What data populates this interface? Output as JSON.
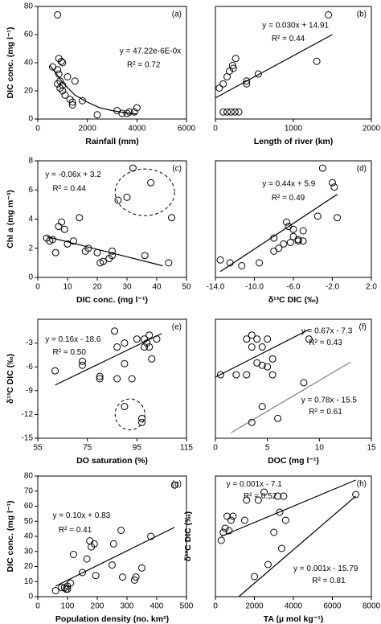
{
  "chart_data": [
    {
      "type": "scatter",
      "label": "(a)",
      "xlabel": "Rainfall (mm)",
      "ylabel": "DIC conc. (mg l⁻¹)",
      "x": [
        800,
        600,
        850,
        950,
        1000,
        800,
        850,
        900,
        800,
        1000,
        900,
        1000,
        1100,
        1200,
        1300,
        1400,
        1400,
        1500,
        1800,
        2400,
        3200,
        3400,
        3600,
        3700,
        3900,
        4000
      ],
      "y": [
        74,
        37,
        43,
        41,
        40,
        35,
        32,
        27,
        25,
        24,
        22,
        20,
        17,
        30,
        14,
        12,
        10,
        27,
        13,
        3,
        6,
        4,
        4,
        5,
        5,
        8
      ],
      "xlim": [
        0,
        6000
      ],
      "xticks": [
        0,
        2000,
        4000,
        6000
      ],
      "ylim": [
        0,
        80
      ],
      "yticks": [
        0,
        20,
        40,
        60,
        80
      ],
      "annotations": [
        "y = 47.22e-6E-0x",
        "R² = 0.72"
      ],
      "trendlines": [
        {
          "color": "#000000",
          "x": [
            500,
            1000,
            1500,
            2000,
            2500,
            3000,
            3500,
            4000
          ],
          "y": [
            38,
            26,
            17,
            12,
            8,
            6,
            4.5,
            3.5
          ]
        }
      ],
      "marker_color": "#000000"
    },
    {
      "type": "scatter",
      "label": "(b)",
      "xlabel": "Length of river (km)",
      "x": [
        50,
        100,
        150,
        180,
        220,
        260,
        230,
        100,
        150,
        200,
        250,
        300,
        400,
        400,
        550,
        1300,
        1450
      ],
      "y": [
        22,
        25,
        30,
        34,
        38,
        43,
        36,
        5,
        5,
        5,
        5,
        5,
        27,
        25,
        32,
        41,
        74
      ],
      "xlim": [
        0,
        2000
      ],
      "xticks": [
        0,
        1000,
        2000
      ],
      "ylim": [
        0,
        80
      ],
      "annotations": [
        "y = 0.030x + 14.91",
        "R² = 0.44"
      ],
      "trendlines": [
        {
          "color": "#000000",
          "x": [
            0,
            1500
          ],
          "y": [
            15,
            60
          ]
        }
      ],
      "marker_color": "#000000"
    },
    {
      "type": "scatter",
      "label": "(c)",
      "xlabel": "DIC conc.  (mg l⁻¹)",
      "ylabel": "Chl a  (mg m⁻³)",
      "x": [
        3,
        4,
        5,
        6,
        7,
        8,
        9,
        10,
        12,
        14,
        16,
        17,
        20,
        21,
        22,
        24,
        25,
        25,
        27,
        30,
        32,
        36,
        38,
        44,
        45
      ],
      "y": [
        2.7,
        2.5,
        2.6,
        1.7,
        3.5,
        3.8,
        3.3,
        2.3,
        2.5,
        4.1,
        1.8,
        2.0,
        1.7,
        1.0,
        1.1,
        1.3,
        1.5,
        1.8,
        5.3,
        5.5,
        7.5,
        1.5,
        6.5,
        1.0,
        4.1
      ],
      "xlim": [
        0,
        50
      ],
      "xticks": [
        0,
        10,
        20,
        30,
        40,
        50
      ],
      "ylim": [
        0,
        8
      ],
      "yticks": [
        0,
        2,
        4,
        6,
        8
      ],
      "annotations": [
        "y = -0.06x + 3.2",
        "R² = 0.44"
      ],
      "trendlines": [
        {
          "color": "#000000",
          "x": [
            3,
            42
          ],
          "y": [
            2.8,
            0.8
          ]
        }
      ],
      "marker_color": "#000000"
    },
    {
      "type": "scatter",
      "label": "(d)",
      "xlabel": "δ¹³C DIC (‰)",
      "x": [
        -13.5,
        -12.5,
        -11.3,
        -9.5,
        -8,
        -8,
        -7.5,
        -7,
        -6.7,
        -6.5,
        -6.3,
        -6,
        -6,
        -5.5,
        -5,
        -5,
        -3.5,
        -3,
        -2,
        -1.8,
        -1.5,
        -5.5
      ],
      "y": [
        1.2,
        1.0,
        0.8,
        1.0,
        1.8,
        2.7,
        2.0,
        2.3,
        3.8,
        3.5,
        2.4,
        3.3,
        2.8,
        2.6,
        3.2,
        2.5,
        4.2,
        7.5,
        6.5,
        6.2,
        4.1,
        2.5
      ],
      "xlim": [
        -14,
        2
      ],
      "xticks": [
        {
          "value": -14,
          "label": "-14.0"
        },
        {
          "value": -10,
          "label": "-10.0"
        },
        {
          "value": -6,
          "label": "-6.0"
        },
        {
          "value": -2,
          "label": "-2.0"
        },
        {
          "value": 2,
          "label": "2.0"
        }
      ],
      "ylim": [
        0,
        8
      ],
      "annotations": [
        "y = 0.44x + 5.9",
        "R² = 0.49"
      ],
      "trendlines": [
        {
          "color": "#000000",
          "x": [
            -13.5,
            -1.5
          ],
          "y": [
            0.4,
            5.7
          ]
        }
      ],
      "marker_color": "#000000"
    },
    {
      "type": "scatter",
      "label": "(e)",
      "xlabel": "DO saturation  (%)",
      "ylabel": "δ¹³C DIC (‰)",
      "x": [
        62,
        73,
        73,
        80,
        80,
        86,
        87,
        90,
        90,
        93,
        95,
        98,
        98,
        99,
        100,
        100,
        101,
        103,
        90,
        97,
        97,
        87
      ],
      "y": [
        -6.5,
        -5.3,
        -5.8,
        -7.2,
        -7.5,
        -1.5,
        -3.5,
        -5.6,
        -3.0,
        -7.5,
        -2.5,
        -3.5,
        -2.5,
        -3.0,
        -3.5,
        -2.0,
        -5.0,
        -2.5,
        -11.0,
        -12.5,
        -13.0,
        -7.5
      ],
      "xlim": [
        55,
        115
      ],
      "xticks": [
        55,
        75,
        95,
        115
      ],
      "ylim": [
        -15,
        0
      ],
      "yticks": [
        -15,
        -12,
        -9,
        -6,
        -3
      ],
      "annotations": [
        "y = 0.16x - 18.6",
        "R² = 0.50"
      ],
      "trendlines": [
        {
          "color": "#000000",
          "x": [
            62,
            105
          ],
          "y": [
            -8.3,
            -1.8
          ]
        }
      ],
      "marker_color": "#000000"
    },
    {
      "type": "scatter",
      "label": "(f)",
      "xlabel": "DOC (mg l⁻¹)",
      "x": [
        0.5,
        2,
        3,
        3,
        3.5,
        3.5,
        4,
        4,
        4.5,
        4.5,
        5,
        5,
        5.5,
        5.5,
        4.5,
        3.5,
        6,
        8.5,
        9
      ],
      "y": [
        -7,
        -7,
        -7,
        -2.5,
        -3.5,
        -2,
        -2.5,
        -5.5,
        -5.8,
        -3.5,
        -2.5,
        -6,
        -5,
        -7,
        -11,
        -13,
        -12.5,
        -8,
        -2.5
      ],
      "xlim": [
        0,
        15
      ],
      "xticks": [
        0,
        5,
        10,
        15
      ],
      "ylim": [
        -15,
        0
      ],
      "annotations": [
        "y = 0.67x - 7.3",
        "R² = 0.43",
        "y = 0.78x - 15.5",
        "R² = 0.61"
      ],
      "trendlines": [
        {
          "color": "#000000",
          "x": [
            0,
            9
          ],
          "y": [
            -7.3,
            -1.3
          ]
        },
        {
          "color": "#808080",
          "x": [
            1.5,
            13
          ],
          "y": [
            -14.3,
            -5.4
          ]
        }
      ],
      "marker_color": "#000000"
    },
    {
      "type": "scatter",
      "label": "(g)",
      "xlabel": "Population density (no. km²)",
      "ylabel": "DIC conc.  (mg l⁻¹)",
      "x": [
        60,
        80,
        95,
        100,
        100,
        110,
        120,
        150,
        165,
        175,
        180,
        190,
        195,
        250,
        255,
        280,
        285,
        325,
        330,
        350,
        380,
        460,
        90
      ],
      "y": [
        4,
        6,
        5,
        5,
        7,
        9,
        28,
        16,
        25,
        37,
        33,
        35,
        14,
        21,
        35,
        44,
        13,
        11,
        13,
        19,
        40,
        74,
        6
      ],
      "xlim": [
        0,
        500
      ],
      "xticks": [
        0,
        100,
        200,
        300,
        400,
        500
      ],
      "ylim": [
        0,
        80
      ],
      "yticks": [
        0,
        10,
        20,
        30,
        40,
        50,
        60,
        70,
        80
      ],
      "annotations": [
        "y = 0.10x + 0.83",
        "R² = 0.41"
      ],
      "trendlines": [
        {
          "color": "#000000",
          "x": [
            60,
            460
          ],
          "y": [
            7,
            46
          ]
        }
      ],
      "marker_color": "#000000"
    },
    {
      "type": "scatter",
      "label": "(h)",
      "xlabel": "TA (µ mol kg⁻¹)",
      "ylabel": "δ¹³C DIC (‰)",
      "x": [
        300,
        400,
        500,
        600,
        700,
        800,
        900,
        1500,
        1600,
        2200,
        2000,
        2500,
        2700,
        3000,
        3200,
        3300,
        3400,
        3500,
        3600,
        7200
      ],
      "y": [
        -8,
        -7,
        -6.5,
        -5,
        -6.8,
        -5.5,
        -5,
        -5.5,
        -3,
        -3,
        -12.5,
        -2,
        -11,
        -7,
        -2.5,
        -4.5,
        -9,
        -2.5,
        -5.5,
        -2.3
      ],
      "xlim": [
        0,
        8000
      ],
      "xticks": [
        0,
        2000,
        4000,
        6000,
        8000
      ],
      "ylim": [
        -15,
        0
      ],
      "annotations": [
        "y = 0.001x - 7.1",
        "R² = 0.52",
        "y = 0.001x - 15.79",
        "R² = 0.81"
      ],
      "trendlines": [
        {
          "color": "#000000",
          "x": [
            300,
            7200
          ],
          "y": [
            -7.5,
            -0.5
          ]
        },
        {
          "color": "#000000",
          "x": [
            1200,
            7200
          ],
          "y": [
            -15,
            -2.5
          ]
        }
      ],
      "marker_color": "#000000"
    }
  ]
}
